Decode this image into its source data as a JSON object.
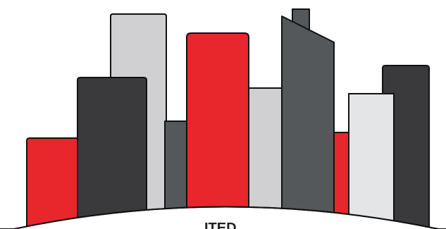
{
  "logo": {
    "type": "city-skyline-illustration",
    "colors": {
      "red": "#E8272C",
      "dark_gray": "#3A3A3C",
      "mid_gray": "#54585A",
      "light_gray": "#D0D0D2",
      "pale_gray": "#E4E5E7",
      "outline": "#111111",
      "background": "#FFFFFF"
    },
    "cropped_text": "ITED"
  }
}
